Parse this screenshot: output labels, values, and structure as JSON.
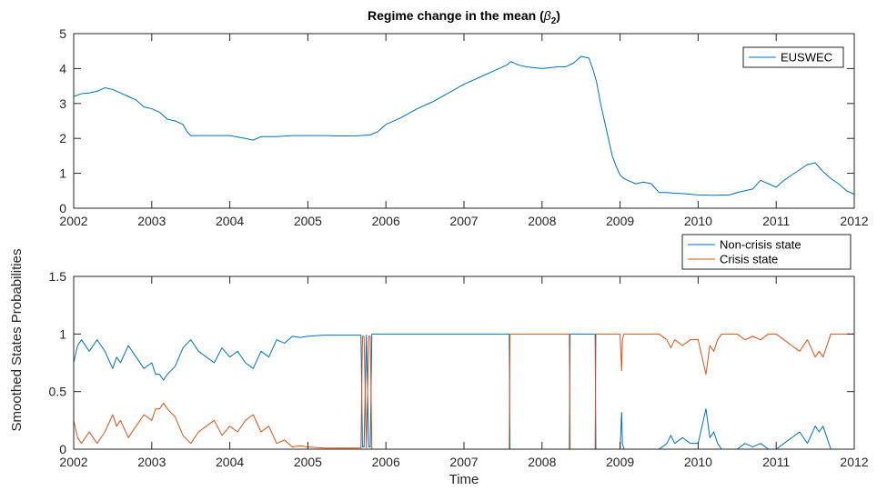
{
  "chart_data": [
    {
      "type": "line",
      "title": "Regime change in the mean (",
      "title_symbol": "β",
      "title_subscript": "2",
      "title_close": ")",
      "xlabel": "",
      "ylabel": "",
      "xlim": [
        2002,
        2012
      ],
      "ylim": [
        0,
        5
      ],
      "xticks": [
        2002,
        2003,
        2004,
        2005,
        2006,
        2007,
        2008,
        2009,
        2010,
        2011,
        2012
      ],
      "yticks": [
        0,
        1,
        2,
        3,
        4,
        5
      ],
      "legend_position": "top-right",
      "series": [
        {
          "name": "EUSWEC",
          "color": "#0072BD",
          "x": [
            2002.0,
            2002.1,
            2002.2,
            2002.3,
            2002.4,
            2002.5,
            2002.6,
            2002.7,
            2002.8,
            2002.9,
            2003.0,
            2003.1,
            2003.2,
            2003.3,
            2003.4,
            2003.45,
            2003.5,
            2003.6,
            2003.8,
            2004.0,
            2004.2,
            2004.3,
            2004.4,
            2004.6,
            2004.8,
            2005.0,
            2005.2,
            2005.4,
            2005.6,
            2005.8,
            2005.9,
            2006.0,
            2006.2,
            2006.4,
            2006.6,
            2006.8,
            2007.0,
            2007.2,
            2007.4,
            2007.55,
            2007.6,
            2007.7,
            2007.8,
            2008.0,
            2008.2,
            2008.3,
            2008.4,
            2008.5,
            2008.6,
            2008.65,
            2008.7,
            2008.75,
            2008.8,
            2008.85,
            2008.9,
            2008.95,
            2009.0,
            2009.05,
            2009.1,
            2009.2,
            2009.3,
            2009.4,
            2009.5,
            2009.6,
            2009.7,
            2009.8,
            2010.0,
            2010.2,
            2010.4,
            2010.5,
            2010.6,
            2010.7,
            2010.8,
            2010.9,
            2011.0,
            2011.1,
            2011.2,
            2011.3,
            2011.4,
            2011.5,
            2011.6,
            2011.65,
            2011.7,
            2011.8,
            2011.9,
            2012.0
          ],
          "y": [
            3.2,
            3.28,
            3.3,
            3.35,
            3.45,
            3.4,
            3.3,
            3.2,
            3.1,
            2.9,
            2.85,
            2.75,
            2.55,
            2.5,
            2.4,
            2.2,
            2.08,
            2.08,
            2.08,
            2.08,
            2.0,
            1.95,
            2.05,
            2.05,
            2.08,
            2.08,
            2.08,
            2.07,
            2.07,
            2.1,
            2.2,
            2.4,
            2.6,
            2.85,
            3.05,
            3.3,
            3.55,
            3.75,
            3.95,
            4.1,
            4.2,
            4.1,
            4.05,
            4.0,
            4.05,
            4.05,
            4.15,
            4.35,
            4.3,
            4.0,
            3.6,
            3.0,
            2.5,
            2.0,
            1.5,
            1.2,
            0.95,
            0.85,
            0.8,
            0.7,
            0.75,
            0.7,
            0.45,
            0.45,
            0.43,
            0.42,
            0.38,
            0.37,
            0.38,
            0.45,
            0.5,
            0.55,
            0.8,
            0.7,
            0.6,
            0.8,
            0.95,
            1.1,
            1.25,
            1.3,
            1.05,
            0.95,
            0.85,
            0.7,
            0.5,
            0.4
          ]
        }
      ]
    },
    {
      "type": "line",
      "title": "",
      "xlabel": "Time",
      "ylabel": "Smoothed States Probabilities",
      "xlim": [
        2002,
        2012
      ],
      "ylim": [
        0,
        1.5
      ],
      "xticks": [
        2002,
        2003,
        2004,
        2005,
        2006,
        2007,
        2008,
        2009,
        2010,
        2011,
        2012
      ],
      "yticks": [
        0,
        0.5,
        1,
        1.5
      ],
      "legend_position": "outside-top-right",
      "series": [
        {
          "name": "Non-crisis state",
          "color": "#0072BD",
          "x": [
            2002.0,
            2002.05,
            2002.1,
            2002.2,
            2002.3,
            2002.4,
            2002.5,
            2002.55,
            2002.6,
            2002.7,
            2002.8,
            2002.9,
            2003.0,
            2003.05,
            2003.1,
            2003.15,
            2003.2,
            2003.3,
            2003.4,
            2003.5,
            2003.6,
            2003.7,
            2003.8,
            2003.9,
            2004.0,
            2004.1,
            2004.2,
            2004.3,
            2004.4,
            2004.5,
            2004.6,
            2004.7,
            2004.8,
            2004.9,
            2005.0,
            2005.2,
            2005.4,
            2005.6,
            2005.68,
            2005.7,
            2005.72,
            2005.75,
            2005.78,
            2005.8,
            2005.82,
            2005.9,
            2006.0,
            2006.5,
            2007.0,
            2007.5,
            2007.58,
            2007.59,
            2007.6,
            2008.0,
            2008.3,
            2008.35,
            2008.36,
            2008.37,
            2008.38,
            2008.4,
            2008.6,
            2008.68,
            2008.69,
            2008.7,
            2008.9,
            2009.0,
            2009.02,
            2009.03,
            2009.05,
            2009.5,
            2009.6,
            2009.65,
            2009.7,
            2009.8,
            2009.9,
            2010.0,
            2010.05,
            2010.1,
            2010.15,
            2010.2,
            2010.25,
            2010.3,
            2010.5,
            2010.6,
            2010.7,
            2010.8,
            2010.9,
            2011.0,
            2011.1,
            2011.2,
            2011.3,
            2011.4,
            2011.5,
            2011.55,
            2011.6,
            2011.7,
            2012.0
          ],
          "y": [
            0.75,
            0.9,
            0.95,
            0.85,
            0.95,
            0.85,
            0.7,
            0.8,
            0.75,
            0.9,
            0.8,
            0.7,
            0.75,
            0.65,
            0.65,
            0.6,
            0.65,
            0.72,
            0.88,
            0.95,
            0.85,
            0.8,
            0.75,
            0.88,
            0.8,
            0.85,
            0.75,
            0.7,
            0.85,
            0.8,
            0.95,
            0.92,
            0.98,
            0.97,
            0.98,
            0.99,
            0.99,
            0.99,
            0.99,
            0.02,
            0.02,
            0.99,
            0.02,
            0.02,
            1.0,
            1.0,
            1.0,
            1.0,
            1.0,
            1.0,
            1.0,
            0.0,
            0.0,
            0.0,
            0.0,
            0.0,
            1.0,
            1.0,
            1.0,
            1.0,
            1.0,
            1.0,
            0.0,
            0.0,
            0.0,
            0.0,
            0.32,
            0.05,
            0.0,
            0.0,
            0.05,
            0.12,
            0.05,
            0.1,
            0.05,
            0.05,
            0.2,
            0.35,
            0.1,
            0.15,
            0.05,
            0.0,
            0.0,
            0.05,
            0.02,
            0.05,
            0.0,
            0.0,
            0.05,
            0.1,
            0.15,
            0.05,
            0.2,
            0.15,
            0.2,
            0.0,
            0.0
          ]
        },
        {
          "name": "Crisis state",
          "color": "#D95319",
          "x": [
            2002.0,
            2002.05,
            2002.1,
            2002.2,
            2002.3,
            2002.4,
            2002.5,
            2002.55,
            2002.6,
            2002.7,
            2002.8,
            2002.9,
            2003.0,
            2003.05,
            2003.1,
            2003.15,
            2003.2,
            2003.3,
            2003.4,
            2003.5,
            2003.6,
            2003.7,
            2003.8,
            2003.9,
            2004.0,
            2004.1,
            2004.2,
            2004.3,
            2004.4,
            2004.5,
            2004.6,
            2004.7,
            2004.8,
            2004.9,
            2005.0,
            2005.2,
            2005.4,
            2005.6,
            2005.68,
            2005.7,
            2005.72,
            2005.75,
            2005.78,
            2005.8,
            2005.82,
            2005.9,
            2006.0,
            2006.5,
            2007.0,
            2007.5,
            2007.58,
            2007.59,
            2007.6,
            2008.0,
            2008.3,
            2008.35,
            2008.36,
            2008.37,
            2008.38,
            2008.4,
            2008.6,
            2008.68,
            2008.69,
            2008.7,
            2008.9,
            2009.0,
            2009.02,
            2009.03,
            2009.05,
            2009.5,
            2009.6,
            2009.65,
            2009.7,
            2009.8,
            2009.9,
            2010.0,
            2010.05,
            2010.1,
            2010.15,
            2010.2,
            2010.25,
            2010.3,
            2010.5,
            2010.6,
            2010.7,
            2010.8,
            2010.9,
            2011.0,
            2011.1,
            2011.2,
            2011.3,
            2011.4,
            2011.5,
            2011.55,
            2011.6,
            2011.7,
            2012.0
          ],
          "y": [
            0.25,
            0.1,
            0.05,
            0.15,
            0.05,
            0.15,
            0.3,
            0.2,
            0.25,
            0.1,
            0.2,
            0.3,
            0.25,
            0.35,
            0.35,
            0.4,
            0.35,
            0.28,
            0.12,
            0.05,
            0.15,
            0.2,
            0.25,
            0.12,
            0.2,
            0.15,
            0.25,
            0.3,
            0.15,
            0.2,
            0.05,
            0.08,
            0.02,
            0.03,
            0.02,
            0.01,
            0.01,
            0.01,
            0.01,
            0.98,
            0.98,
            0.01,
            0.98,
            0.98,
            0.0,
            0.0,
            0.0,
            0.0,
            0.0,
            0.0,
            0.0,
            1.0,
            1.0,
            1.0,
            1.0,
            1.0,
            0.0,
            0.0,
            0.0,
            0.0,
            0.0,
            0.0,
            1.0,
            1.0,
            1.0,
            1.0,
            0.68,
            0.95,
            1.0,
            1.0,
            0.95,
            0.88,
            0.95,
            0.9,
            0.95,
            0.95,
            0.8,
            0.65,
            0.9,
            0.85,
            0.95,
            1.0,
            1.0,
            0.95,
            0.98,
            0.95,
            1.0,
            1.0,
            0.95,
            0.9,
            0.85,
            0.95,
            0.8,
            0.85,
            0.8,
            1.0,
            1.0
          ]
        }
      ]
    }
  ]
}
